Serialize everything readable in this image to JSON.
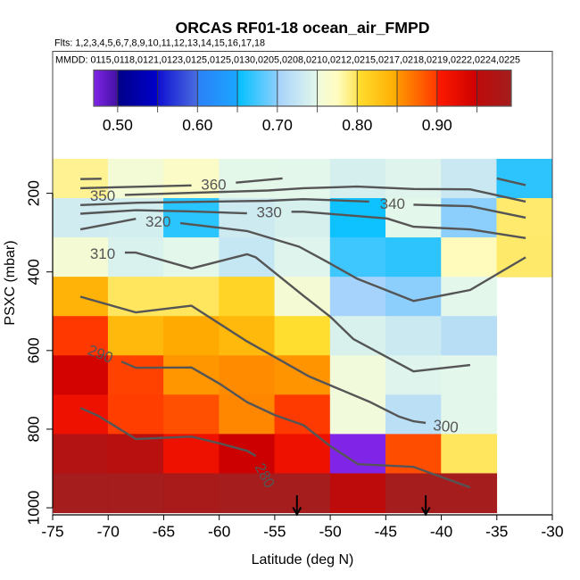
{
  "chart_data": {
    "type": "heatmap",
    "title": "ORCAS RF01-18 ocean_air_FMPD",
    "subtitle": "Flts: 1,2,3,4,5,6,7,8,9,10,11,12,13,14,15,16,17,18",
    "annotation": "MMDD: 0115,0118,0121,0123,0125,0125,0130,0205,0208,0210,0212,0215,0217,0218,0219,0222,0224,0225",
    "xlabel": "Latitude (deg N)",
    "ylabel": "PSXC (mbar)",
    "xlim": [
      -75,
      -30
    ],
    "ylim": [
      1018,
      -160
    ],
    "xticks": [
      -75,
      -70,
      -65,
      -60,
      -55,
      -50,
      -45,
      -40,
      -35,
      -30
    ],
    "xtick_labels": [
      "-75",
      "-70",
      "-65",
      "-60",
      "-55",
      "-50",
      "-45",
      "-40",
      "-35",
      "-30"
    ],
    "yticks": [
      200,
      400,
      600,
      800,
      1000
    ],
    "ytick_labels": [
      "200",
      "400",
      "600",
      "800",
      "1000"
    ],
    "grid": false,
    "x_edges": [
      -75,
      -70,
      -65,
      -60,
      -55,
      -50,
      -45,
      -40,
      -35,
      -30
    ],
    "y_edges": [
      113,
      213,
      313,
      413,
      513,
      613,
      713,
      813,
      913,
      1013
    ],
    "values": [
      [
        0.786,
        0.755,
        0.768,
        0.75,
        0.749,
        0.738,
        0.745,
        0.729,
        0.666
      ],
      [
        0.734,
        0.737,
        0.665,
        0.732,
        0.739,
        0.655,
        0.749,
        0.7,
        0.795
      ],
      [
        0.757,
        0.742,
        0.749,
        0.726,
        0.745,
        0.672,
        0.666,
        0.776,
        0.796
      ],
      [
        0.842,
        0.799,
        0.799,
        0.81,
        0.757,
        0.701,
        0.7,
        0.749,
        null
      ],
      [
        0.9,
        0.837,
        0.85,
        0.837,
        0.801,
        0.741,
        0.73,
        0.716,
        null
      ],
      [
        0.944,
        0.895,
        0.851,
        0.856,
        0.852,
        0.751,
        0.745,
        0.749,
        null
      ],
      [
        0.917,
        0.897,
        0.888,
        0.859,
        0.899,
        0.752,
        0.718,
        0.749,
        null
      ],
      [
        0.969,
        0.96,
        0.917,
        0.95,
        0.917,
        0.47,
        0.889,
        0.799,
        null
      ],
      [
        0.99,
        0.99,
        0.985,
        0.99,
        0.99,
        0.952,
        0.99,
        0.99,
        null
      ]
    ],
    "colorbar": {
      "range": [
        0.47,
        0.993
      ],
      "ticks": [
        0.5,
        0.55,
        0.6,
        0.65,
        0.7,
        0.75,
        0.8,
        0.85,
        0.9,
        0.95
      ],
      "labels": [
        {
          "value": 0.5,
          "text": "0.50"
        },
        {
          "value": 0.6,
          "text": "0.60"
        },
        {
          "value": 0.7,
          "text": "0.70"
        },
        {
          "value": 0.8,
          "text": "0.80"
        },
        {
          "value": 0.9,
          "text": "0.90"
        }
      ],
      "segments": [
        {
          "from": 0.47,
          "to": 0.5,
          "colors": [
            "#8024E8",
            "#4010A0"
          ]
        },
        {
          "from": 0.5,
          "to": 0.55,
          "colors": [
            "#000088",
            "#0000CC"
          ]
        },
        {
          "from": 0.55,
          "to": 0.6,
          "colors": [
            "#1010D2",
            "#4A6EE0"
          ]
        },
        {
          "from": 0.6,
          "to": 0.65,
          "colors": [
            "#2C80F8",
            "#1AA6FF"
          ]
        },
        {
          "from": 0.65,
          "to": 0.7,
          "colors": [
            "#00BFFF",
            "#8CCFFC"
          ]
        },
        {
          "from": 0.7,
          "to": 0.75,
          "colors": [
            "#A4D2FC",
            "#E4F8EA"
          ]
        },
        {
          "from": 0.75,
          "to": 0.8,
          "colors": [
            "#F0FADC",
            "#FFFCC0",
            "#FFE55A"
          ]
        },
        {
          "from": 0.8,
          "to": 0.85,
          "colors": [
            "#FFDF30",
            "#FFAA00"
          ]
        },
        {
          "from": 0.85,
          "to": 0.9,
          "colors": [
            "#FF9800",
            "#FF3800"
          ]
        },
        {
          "from": 0.9,
          "to": 0.95,
          "colors": [
            "#FF1A00",
            "#CC0000"
          ]
        },
        {
          "from": 0.95,
          "to": 0.993,
          "colors": [
            "#BE0A0A",
            "#A41E1E"
          ]
        }
      ]
    },
    "contour_color": "#555555",
    "contours": [
      {
        "level": null,
        "segments": [
          [
            [
              -72.5,
              164
            ],
            [
              -70.6,
              163
            ]
          ]
        ],
        "label": null
      },
      {
        "level": 360,
        "segments": [
          [
            [
              -72.5,
              187
            ],
            [
              -62.5,
              180
            ]
          ],
          [
            [
              -58.5,
              173
            ],
            [
              -54.3,
              162
            ]
          ],
          [
            [
              -35.0,
              162
            ],
            [
              -32.4,
              179
            ]
          ]
        ],
        "label": {
          "text": "360",
          "lat": -60.5,
          "p": 178
        }
      },
      {
        "level": 350,
        "segments": [
          [
            [
              -68.5,
              204
            ],
            [
              -55.6,
              193
            ],
            [
              -52.4,
              187
            ],
            [
              -47.6,
              183
            ],
            [
              -42.5,
              189
            ],
            [
              -37.4,
              190
            ],
            [
              -32.4,
              221
            ]
          ]
        ],
        "label": {
          "text": "350",
          "lat": -70.5,
          "p": 206
        }
      },
      {
        "level": 340,
        "segments": [
          [
            [
              -72.5,
              230
            ],
            [
              -67.3,
              224
            ],
            [
              -55.6,
              219
            ],
            [
              -52.4,
              215
            ],
            [
              -46.5,
              221
            ]
          ],
          [
            [
              -42.5,
              229
            ],
            [
              -37.4,
              233
            ],
            [
              -32.4,
              262
            ]
          ]
        ],
        "label": {
          "text": "340",
          "lat": -44.4,
          "p": 227
        }
      },
      {
        "level": 330,
        "segments": [
          [
            [
              -72.5,
              252
            ],
            [
              -67.5,
              243
            ],
            [
              -62.5,
              246
            ],
            [
              -57.5,
              251
            ]
          ],
          [
            [
              -53.5,
              247
            ],
            [
              -52.4,
              247
            ],
            [
              -44.9,
              264
            ],
            [
              -42.5,
              285
            ],
            [
              -37.4,
              292
            ],
            [
              -32.4,
              314
            ]
          ]
        ],
        "label": {
          "text": "330",
          "lat": -55.5,
          "p": 249
        }
      },
      {
        "level": 320,
        "segments": [
          [
            [
              -72.5,
              292
            ],
            [
              -67.5,
              265
            ]
          ],
          [
            [
              -63.5,
              276
            ],
            [
              -57.5,
              296
            ],
            [
              -52.8,
              336
            ],
            [
              -50.3,
              374
            ],
            [
              -47.6,
              417
            ],
            [
              -42.5,
              474
            ],
            [
              -37.4,
              446
            ],
            [
              -32.4,
              363
            ]
          ]
        ],
        "label": {
          "text": "320",
          "lat": -65.5,
          "p": 272
        }
      },
      {
        "level": 310,
        "segments": [
          [
            [
              -68.5,
              351
            ],
            [
              -67.5,
              351
            ],
            [
              -62.5,
              391
            ],
            [
              -57.5,
              355
            ],
            [
              -56.7,
              363
            ],
            [
              -52.4,
              461
            ],
            [
              -50.0,
              514
            ],
            [
              -47.9,
              571
            ],
            [
              -42.5,
              653
            ],
            [
              -37.4,
              637
            ]
          ]
        ],
        "label": {
          "text": "310",
          "lat": -70.5,
          "p": 354
        }
      },
      {
        "level": 300,
        "segments": [
          [
            [
              -72.5,
              463
            ],
            [
              -67.5,
              503
            ],
            [
              -62.5,
              486
            ],
            [
              -57.6,
              575
            ],
            [
              -51.9,
              666
            ],
            [
              -46.5,
              730
            ],
            [
              -43.8,
              768
            ],
            [
              -42.5,
              780
            ],
            [
              -41.4,
              784
            ]
          ]
        ],
        "label": {
          "text": "300",
          "lat": -39.6,
          "p": 793
        }
      },
      {
        "level": 290,
        "segments": [
          [
            [
              -68.8,
              628
            ],
            [
              -67.5,
              644
            ],
            [
              -62.5,
              643
            ],
            [
              -60.0,
              684
            ],
            [
              -57.5,
              731
            ],
            [
              -55.0,
              764
            ],
            [
              -52.4,
              790
            ],
            [
              -50.0,
              843
            ],
            [
              -47.5,
              889
            ],
            [
              -42.5,
              896
            ],
            [
              -37.4,
              948
            ]
          ]
        ],
        "label": {
          "text": "290",
          "lat": -70.7,
          "p": 609
        }
      },
      {
        "level": 280,
        "segments": [
          [
            [
              -72.5,
              746
            ],
            [
              -70.9,
              766
            ],
            [
              -67.5,
              825
            ],
            [
              -62.5,
              819
            ],
            [
              -60.0,
              836
            ],
            [
              -57.5,
              855
            ],
            [
              -56.7,
              868
            ]
          ]
        ],
        "label": {
          "text": "280",
          "lat": -55.9,
          "p": 918
        }
      }
    ],
    "markers": [
      {
        "type": "down-arrow",
        "lat": -53.0
      },
      {
        "type": "down-arrow",
        "lat": -41.4
      }
    ]
  }
}
